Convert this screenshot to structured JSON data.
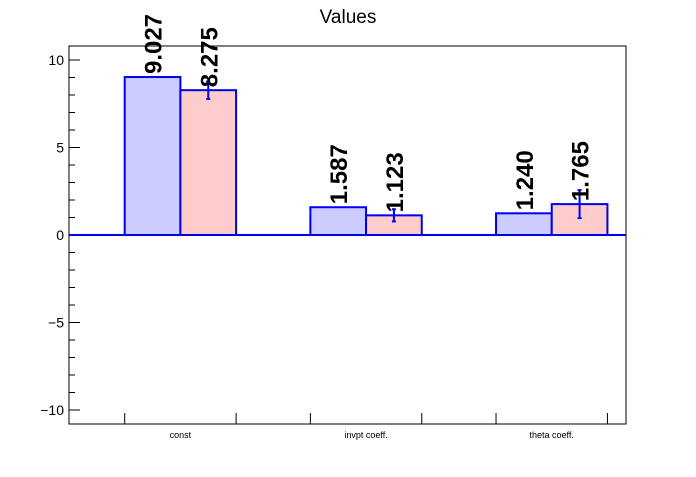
{
  "chart_data": {
    "type": "bar",
    "title": "Values",
    "xlabel": "",
    "ylabel": "",
    "categories": [
      "const",
      "invpt coeff.",
      "theta coeff."
    ],
    "ylim": [
      -10.8,
      10.8
    ],
    "yticks": [
      -10,
      -5,
      0,
      5,
      10
    ],
    "ytick_labels": [
      "−10",
      "−5",
      "0",
      "5",
      "10"
    ],
    "grid": false,
    "legend": "none",
    "series": [
      {
        "values": [
          9.027,
          1.587,
          1.24
        ],
        "labels": [
          "9.027",
          "1.587",
          "1.240"
        ],
        "errors": [
          0,
          0,
          0
        ],
        "fill": "#ccccff",
        "stroke": "#0000ee"
      },
      {
        "values": [
          8.275,
          1.123,
          1.765
        ],
        "labels": [
          "8.275",
          "1.123",
          "1.765"
        ],
        "errors": [
          0.5,
          0.35,
          0.8
        ],
        "fill": "#ffcccc",
        "stroke": "#0000ee"
      }
    ]
  }
}
